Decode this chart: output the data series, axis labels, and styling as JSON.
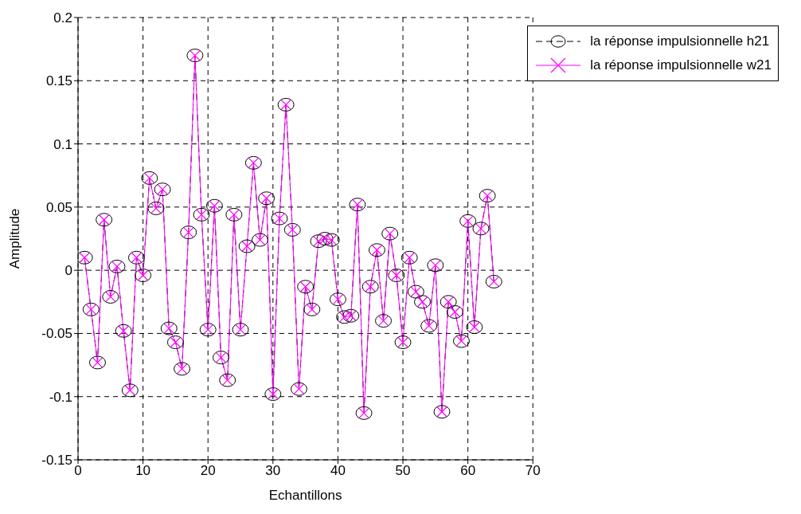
{
  "chart_data": {
    "type": "line",
    "xlabel": "Echantillons",
    "ylabel": "Amplitude",
    "x": [
      1,
      2,
      3,
      4,
      5,
      6,
      7,
      8,
      9,
      10,
      11,
      12,
      13,
      14,
      15,
      16,
      17,
      18,
      19,
      20,
      21,
      22,
      23,
      24,
      25,
      26,
      27,
      28,
      29,
      30,
      31,
      32,
      33,
      34,
      35,
      36,
      37,
      38,
      39,
      40,
      41,
      42,
      43,
      44,
      45,
      46,
      47,
      48,
      49,
      50,
      51,
      52,
      53,
      54,
      55,
      56,
      57,
      58,
      59,
      60,
      61,
      62,
      63,
      64
    ],
    "series": [
      {
        "name": "la réponse impulsionnelle h21",
        "color": "#000000",
        "marker": "circle",
        "line_style": "dashed",
        "values": [
          0.01,
          -0.031,
          -0.073,
          0.04,
          -0.021,
          0.003,
          -0.048,
          -0.095,
          0.01,
          -0.004,
          0.073,
          0.049,
          0.064,
          -0.046,
          -0.057,
          -0.078,
          0.03,
          0.17,
          0.044,
          -0.047,
          0.051,
          -0.069,
          -0.087,
          0.044,
          -0.047,
          0.019,
          0.085,
          0.024,
          0.057,
          -0.098,
          0.041,
          0.131,
          0.032,
          -0.094,
          -0.013,
          -0.031,
          0.023,
          0.025,
          0.024,
          -0.023,
          -0.037,
          -0.036,
          0.052,
          -0.113,
          -0.013,
          0.016,
          -0.04,
          0.029,
          -0.004,
          -0.057,
          0.01,
          -0.017,
          -0.025,
          -0.044,
          0.004,
          -0.112,
          -0.025,
          -0.033,
          -0.056,
          0.039,
          -0.045,
          0.033,
          0.059,
          -0.009
        ]
      },
      {
        "name": "la réponse impulsionnelle w21",
        "color": "#ff00ff",
        "marker": "cross",
        "line_style": "solid",
        "values": [
          0.01,
          -0.031,
          -0.073,
          0.04,
          -0.021,
          0.003,
          -0.048,
          -0.095,
          0.01,
          -0.004,
          0.073,
          0.049,
          0.064,
          -0.046,
          -0.057,
          -0.078,
          0.03,
          0.17,
          0.044,
          -0.047,
          0.051,
          -0.069,
          -0.087,
          0.044,
          -0.047,
          0.019,
          0.085,
          0.024,
          0.057,
          -0.098,
          0.041,
          0.131,
          0.032,
          -0.094,
          -0.013,
          -0.031,
          0.023,
          0.025,
          0.024,
          -0.023,
          -0.037,
          -0.036,
          0.052,
          -0.113,
          -0.013,
          0.016,
          -0.04,
          0.029,
          -0.004,
          -0.057,
          0.01,
          -0.017,
          -0.025,
          -0.044,
          0.004,
          -0.112,
          -0.025,
          -0.033,
          -0.056,
          0.039,
          -0.045,
          0.033,
          0.059,
          -0.009
        ]
      }
    ],
    "xlim": [
      0,
      70
    ],
    "xticks": [
      0,
      10,
      20,
      30,
      40,
      50,
      60,
      70
    ],
    "ylim": [
      -0.15,
      0.2
    ],
    "yticks": [
      -0.15,
      -0.1,
      -0.05,
      0,
      0.05,
      0.1,
      0.15,
      0.2
    ],
    "grid": true,
    "legend": "top right"
  }
}
